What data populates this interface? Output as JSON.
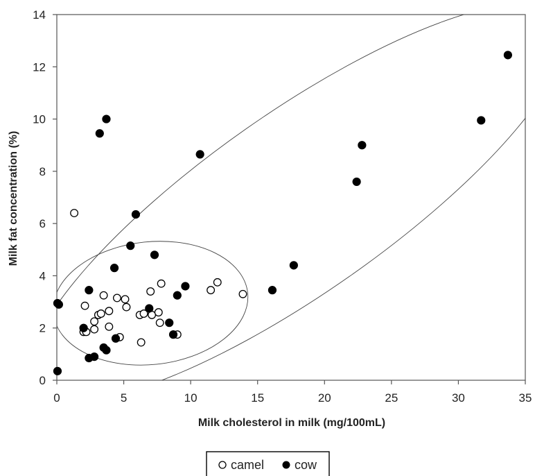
{
  "chart_data": {
    "type": "scatter",
    "title": "",
    "xlabel": "Milk cholesterol in milk (mg/100mL)",
    "ylabel": "Milk fat concentration  (%)",
    "xlim": [
      0,
      35
    ],
    "ylim": [
      0,
      14
    ],
    "xticks": [
      0,
      5,
      10,
      15,
      20,
      25,
      30,
      35
    ],
    "yticks": [
      0,
      2,
      4,
      6,
      8,
      10,
      12,
      14
    ],
    "grid": false,
    "legend": "bottom-center",
    "series": [
      {
        "name": "camel",
        "marker": "open-circle",
        "color": "#000000",
        "x": [
          1.3,
          2.0,
          2.2,
          2.1,
          2.8,
          2.8,
          3.1,
          3.3,
          3.5,
          3.9,
          3.9,
          4.5,
          4.7,
          5.1,
          5.2,
          6.2,
          6.3,
          6.5,
          7.0,
          7.1,
          7.6,
          7.7,
          7.8,
          9.0,
          11.5,
          12.0,
          13.9
        ],
        "y": [
          6.4,
          1.85,
          1.85,
          2.85,
          1.95,
          2.25,
          2.5,
          2.55,
          3.25,
          2.05,
          2.65,
          3.15,
          1.65,
          3.1,
          2.8,
          2.5,
          1.45,
          2.55,
          3.4,
          2.5,
          2.6,
          2.2,
          3.7,
          1.75,
          3.45,
          3.75,
          3.3
        ]
      },
      {
        "name": "cow",
        "marker": "filled-circle",
        "color": "#000000",
        "x": [
          0.05,
          0.05,
          0.15,
          2.0,
          2.4,
          2.4,
          2.8,
          3.2,
          3.5,
          3.7,
          3.7,
          4.3,
          4.4,
          5.5,
          5.9,
          6.9,
          7.3,
          8.4,
          8.7,
          9.0,
          9.6,
          10.7,
          16.1,
          17.7,
          22.4,
          22.8,
          31.7,
          33.7
        ],
        "y": [
          0.35,
          2.95,
          2.9,
          2.0,
          0.85,
          3.45,
          0.9,
          9.45,
          1.25,
          1.15,
          10.0,
          4.3,
          1.6,
          5.15,
          6.35,
          2.75,
          4.8,
          2.2,
          1.75,
          3.25,
          3.6,
          8.65,
          3.45,
          4.4,
          7.6,
          9.0,
          9.95,
          12.45
        ]
      }
    ],
    "ellipses": [
      {
        "name": "camel-region",
        "cx": 7.0,
        "cy": 2.95,
        "rx": 7.3,
        "ry": 2.35,
        "angle_deg": 6
      },
      {
        "name": "cow-region",
        "cx": 18.0,
        "cy": 6.8,
        "rx": 24.0,
        "ry": 3.45,
        "angle_deg": 35
      }
    ]
  }
}
